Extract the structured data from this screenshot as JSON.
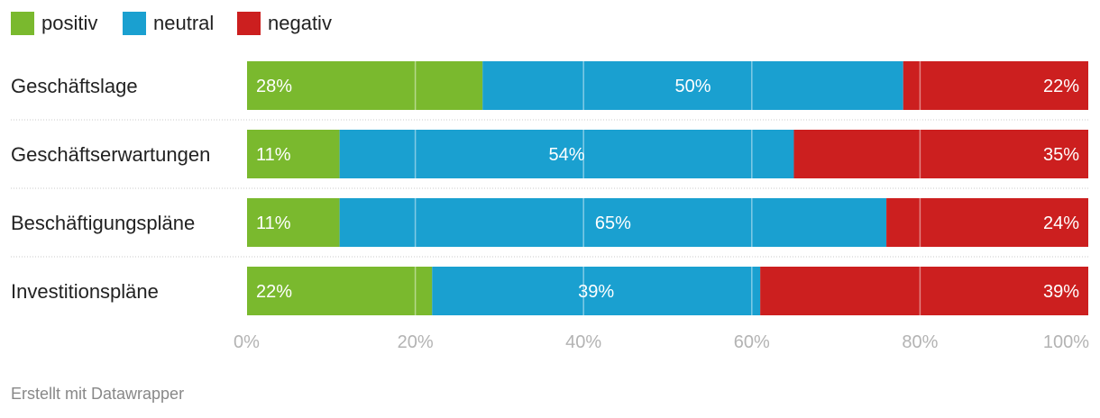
{
  "legend": [
    {
      "name": "positiv",
      "color": "#7ab92e"
    },
    {
      "name": "neutral",
      "color": "#1aa0d0"
    },
    {
      "name": "negativ",
      "color": "#cc1f1f"
    }
  ],
  "chart_data": {
    "type": "bar",
    "orientation": "horizontal",
    "stacked": true,
    "categories": [
      "Geschäftslage",
      "Geschäftserwartungen",
      "Beschäftigungspläne",
      "Investitionspläne"
    ],
    "series": [
      {
        "name": "positiv",
        "values": [
          28,
          11,
          11,
          22
        ],
        "labels": [
          "28%",
          "11%",
          "11%",
          "22%"
        ]
      },
      {
        "name": "neutral",
        "values": [
          50,
          54,
          65,
          39
        ],
        "labels": [
          "50%",
          "54%",
          "65%",
          "39%"
        ]
      },
      {
        "name": "negativ",
        "values": [
          22,
          35,
          24,
          39
        ],
        "labels": [
          "22%",
          "35%",
          "24%",
          "39%"
        ]
      }
    ],
    "xlim": [
      0,
      100
    ],
    "x_ticks": [
      0,
      20,
      40,
      60,
      80,
      100
    ],
    "x_tick_labels": [
      "0%",
      "20%",
      "40%",
      "60%",
      "80%",
      "100%"
    ],
    "grid": true,
    "legend_position": "top-left"
  },
  "footer": {
    "credit": "Erstellt mit Datawrapper"
  }
}
